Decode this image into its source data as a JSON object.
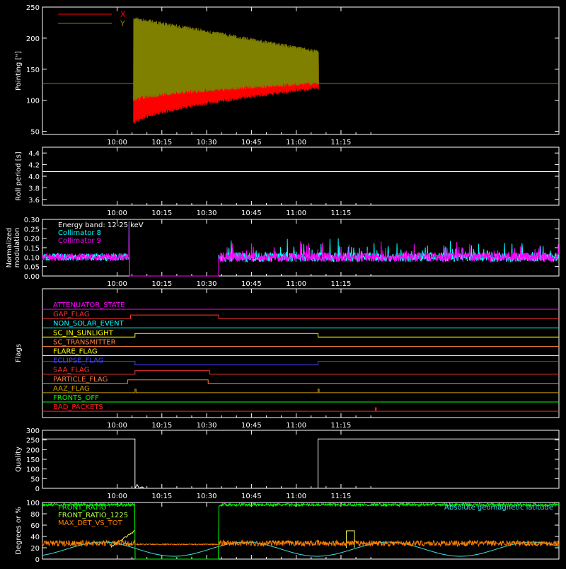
{
  "chart_data": [
    {
      "type": "line",
      "ylabel": "Pointing [\"]",
      "ylim": [
        45,
        250
      ],
      "yticks": [
        50,
        100,
        150,
        200,
        250
      ],
      "xlim": [
        575,
        748
      ],
      "xticks": [
        {
          "t": 600,
          "label": "10:00"
        },
        {
          "t": 615,
          "label": "10:15"
        },
        {
          "t": 630,
          "label": "10:30"
        },
        {
          "t": 645,
          "label": "10:45"
        },
        {
          "t": 660,
          "label": "11:00"
        },
        {
          "t": 675,
          "label": "11:15"
        }
      ],
      "series": [
        {
          "name": "X",
          "color": "#ff0000",
          "baseline": 127,
          "active": [
            605.5,
            667.5
          ],
          "upper_start": 125,
          "upper_end": 174,
          "lower_start": 62,
          "lower_end": 120
        },
        {
          "name": "Y",
          "color": "#808000",
          "baseline": 127,
          "active": [
            605.5,
            667.5
          ],
          "upper_start": 232,
          "upper_end": 178,
          "lower_start": 100,
          "lower_end": 128
        }
      ]
    },
    {
      "type": "line",
      "ylabel": "Roll period [s]",
      "ylim": [
        3.5,
        4.5
      ],
      "yticks": [
        "3.6",
        "3.8",
        "4.0",
        "4.2",
        "4.4"
      ],
      "series": [
        {
          "color": "#ffffff",
          "value": 4.08
        }
      ]
    },
    {
      "type": "line",
      "ylabel": "Normalized modulation",
      "ylim": [
        0,
        0.3
      ],
      "yticks": [
        "0.00",
        "0.05",
        "0.10",
        "0.15",
        "0.20",
        "0.25",
        "0.30"
      ],
      "legend": [
        "Energy band: 12-25 keV",
        "Collimator 8",
        "Collimator 9"
      ],
      "legend_colors": [
        "#ffffff",
        "#00ffff",
        "#ff00ff"
      ],
      "segments": [
        [
          575,
          604
        ],
        [
          634,
          748
        ]
      ],
      "gap_value": 0,
      "mean": 0.1,
      "spike": {
        "t": 604,
        "value": 0.29
      }
    },
    {
      "type": "line",
      "ylabel": "Flags",
      "flags": [
        {
          "label": "ATTENUATOR_STATE",
          "color": "#ff00ff",
          "low": [],
          "high": []
        },
        {
          "label": "GAP_FLAG",
          "color": "#ff3030",
          "high": [
            [
              604.5,
              634
            ]
          ]
        },
        {
          "label": "NON_SOLAR_EVENT",
          "color": "#00ffff",
          "high": []
        },
        {
          "label": "SC_IN_SUNLIGHT",
          "color": "#ffff00",
          "high": [
            [
              606,
              667.3
            ]
          ]
        },
        {
          "label": "SC_TRANSMITTER",
          "color": "#ff8040",
          "high": []
        },
        {
          "label": "FLARE_FLAG",
          "color": "#ffff00",
          "high": []
        },
        {
          "label": "ECLIPSE_FLAG",
          "color": "#4040ff",
          "high": [
            [
              575,
              606
            ],
            [
              667.3,
              748
            ]
          ]
        },
        {
          "label": "SAA_FLAG",
          "color": "#ff3030",
          "high": [
            [
              606,
              631
            ]
          ]
        },
        {
          "label": "PARTICLE_FLAG",
          "color": "#ff8040",
          "high": [
            [
              603.5,
              630.5
            ]
          ]
        },
        {
          "label": "AAZ_FLAG",
          "color": "#c8a000",
          "pulses": [
            606,
            667.3
          ]
        },
        {
          "label": "FRONTS_OFF",
          "color": "#00ff00",
          "high": []
        },
        {
          "label": "BAD_PACKETS",
          "color": "#ff2020",
          "pulses": [
            686.5
          ]
        }
      ]
    },
    {
      "type": "line",
      "ylabel": "Quality",
      "ylim": [
        0,
        300
      ],
      "yticks": [
        0,
        50,
        100,
        150,
        200,
        250,
        300
      ],
      "series": [
        {
          "color": "#ffffff",
          "high_value": 255,
          "high": [
            [
              575,
              606
            ],
            [
              667.3,
              748
            ]
          ]
        }
      ]
    },
    {
      "type": "line",
      "ylabel": "Degrees or %",
      "ylim": [
        0,
        100
      ],
      "yticks": [
        0,
        20,
        40,
        60,
        80,
        100
      ],
      "legend": [
        "FRONT_RATIO",
        "FRONT_RATIO_1225",
        "MAX_DET_VS_TOT"
      ],
      "legend_colors": [
        "#00ff00",
        "#b4ff40",
        "#ff8000"
      ],
      "annotation": "Absolute geomagnetic latitude",
      "series": [
        {
          "name": "FRONT_RATIO",
          "color": "#00ff00",
          "value": 96
        },
        {
          "name": "FRONT_RATIO_1225",
          "color": "#ffff60",
          "value": 50
        },
        {
          "name": "MAX_DET_VS_TOT",
          "color": "#ff8000",
          "value": 28
        },
        {
          "name": "Absolute geomagnetic latitude",
          "color": "#40e0e0",
          "min": 5,
          "max": 30,
          "period": 48,
          "phase": 595
        }
      ]
    }
  ]
}
